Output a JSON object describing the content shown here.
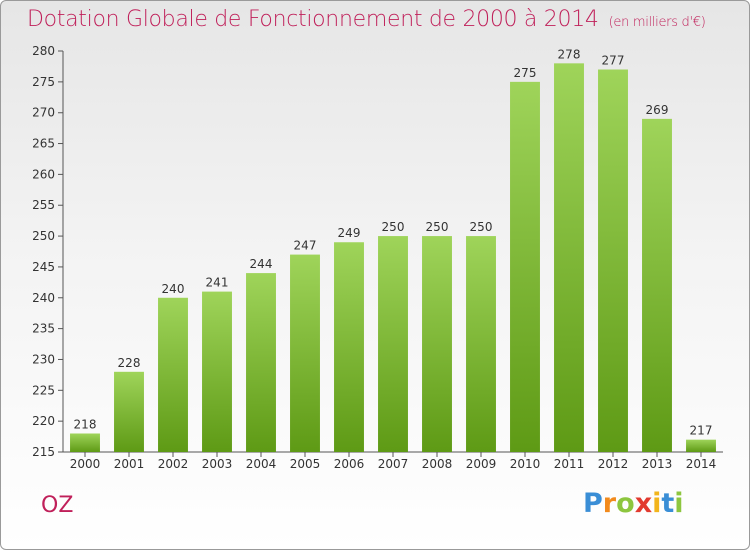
{
  "chart_data": {
    "type": "bar",
    "title": "Dotation Globale de Fonctionnement de 2000 à 2014",
    "unit": "(en milliers d'€)",
    "xlabel": "",
    "ylabel": "",
    "categories": [
      "2000",
      "2001",
      "2002",
      "2003",
      "2004",
      "2005",
      "2006",
      "2007",
      "2008",
      "2009",
      "2010",
      "2011",
      "2012",
      "2013",
      "2014"
    ],
    "values": [
      218,
      228,
      240,
      241,
      244,
      247,
      249,
      250,
      250,
      250,
      275,
      278,
      277,
      269,
      217
    ],
    "ylim": [
      215,
      280
    ],
    "yticks": [
      215,
      220,
      225,
      230,
      235,
      240,
      245,
      250,
      255,
      260,
      265,
      270,
      275,
      280
    ],
    "grid": false,
    "legend": "none",
    "bar_color_light": "#9fd45a",
    "bar_color_dark": "#5e9a15",
    "title_color": "#c0205a"
  },
  "commune": "OZ",
  "logo": {
    "letters": [
      {
        "char": "P",
        "color": "#3a8ed6"
      },
      {
        "char": "r",
        "color": "#f28a1c"
      },
      {
        "char": "o",
        "color": "#8dc63f"
      },
      {
        "char": "x",
        "color": "#e23a2f"
      },
      {
        "char": "i",
        "color": "#f2b51c"
      },
      {
        "char": "t",
        "color": "#3a8ed6"
      },
      {
        "char": "i",
        "color": "#8dc63f"
      }
    ]
  }
}
